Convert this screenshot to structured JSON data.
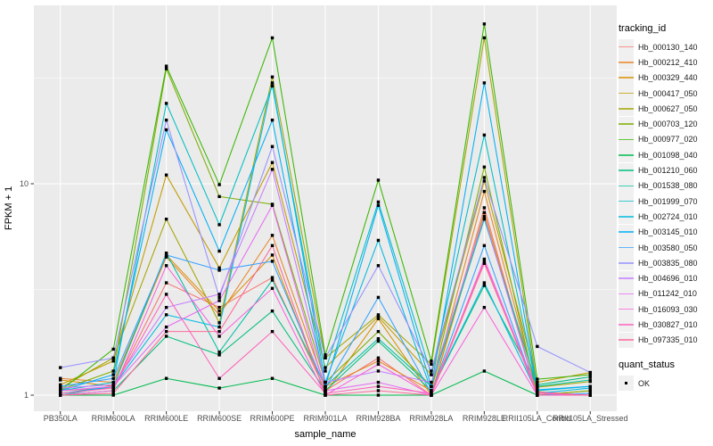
{
  "chart": {
    "ylabel": "FPKM + 1",
    "xlabel": "sample_name",
    "legend_title": "tracking_id",
    "quant_legend_title": "quant_status",
    "quant_legend_item": "OK",
    "y_ticks": [
      {
        "label": "1",
        "value": 1
      },
      {
        "label": "10",
        "value": 10
      }
    ]
  },
  "chart_data": {
    "type": "line",
    "x_type": "categorical",
    "y_scale": "log10",
    "ylim": [
      0.83,
      69
    ],
    "y_major_gridlines": [
      1,
      10
    ],
    "y_minor_gridlines": [
      3.162,
      31.623
    ],
    "grid": true,
    "panel_bg": "#EBEBEB",
    "grid_color": "#FFFFFF",
    "point_marker": "black-square",
    "point_color": "#000000",
    "legend_position": "right",
    "categories": [
      "PB350LA",
      "RRIM600LA",
      "RRIM600LE",
      "RRIM600SE",
      "RRIM600PE",
      "RRIM901LA",
      "RRIM928BA",
      "RRIM928LA",
      "RRIM928LE",
      "RRII105LA_Control",
      "RRII105LA_Stressed"
    ],
    "series": [
      {
        "name": "Hb_000130_140",
        "color": "#F8766D",
        "values": [
          1.05,
          1.08,
          3.4,
          2.6,
          3.6,
          1.05,
          1.5,
          1.0,
          7.7,
          1.0,
          1.0
        ]
      },
      {
        "name": "Hb_000212_410",
        "color": "#E88526",
        "values": [
          1.2,
          1.15,
          4.5,
          2.4,
          5.7,
          1.1,
          1.45,
          1.05,
          9.2,
          1.04,
          1.0
        ]
      },
      {
        "name": "Hb_000329_440",
        "color": "#D89000",
        "values": [
          1.18,
          1.1,
          4.6,
          2.5,
          4.6,
          1.02,
          2.3,
          1.0,
          7.3,
          1.0,
          1.05
        ]
      },
      {
        "name": "Hb_000417_050",
        "color": "#C09B00",
        "values": [
          1.12,
          1.45,
          11.0,
          4.0,
          12.6,
          1.35,
          2.35,
          1.25,
          10.3,
          1.15,
          1.28
        ]
      },
      {
        "name": "Hb_000627_050",
        "color": "#A3A500",
        "values": [
          1.08,
          1.5,
          6.8,
          2.2,
          32.0,
          1.5,
          2.4,
          1.4,
          49.0,
          1.09,
          1.16
        ]
      },
      {
        "name": "Hb_000703_120",
        "color": "#7CAE00",
        "values": [
          1.06,
          1.3,
          35.0,
          8.7,
          8.0,
          1.15,
          2.0,
          1.1,
          12.0,
          1.0,
          1.05
        ]
      },
      {
        "name": "Hb_000977_020",
        "color": "#39B600",
        "values": [
          1.05,
          1.65,
          36.0,
          9.9,
          49.0,
          1.55,
          10.4,
          1.45,
          57.0,
          1.19,
          1.25
        ]
      },
      {
        "name": "Hb_001098_040",
        "color": "#00BB4E",
        "values": [
          1.0,
          1.0,
          1.2,
          1.08,
          1.2,
          1.0,
          1.0,
          1.0,
          1.3,
          1.0,
          1.0
        ]
      },
      {
        "name": "Hb_001210_060",
        "color": "#00BF7D",
        "values": [
          1.0,
          1.05,
          1.9,
          1.55,
          2.5,
          1.05,
          1.8,
          1.05,
          3.3,
          1.12,
          1.22
        ]
      },
      {
        "name": "Hb_001538_080",
        "color": "#00C1A2",
        "values": [
          1.0,
          1.1,
          4.7,
          1.6,
          3.5,
          1.1,
          1.85,
          1.1,
          6.8,
          1.1,
          1.18
        ]
      },
      {
        "name": "Hb_001999_070",
        "color": "#00BFC4",
        "values": [
          1.05,
          1.15,
          24.0,
          6.4,
          29.0,
          1.3,
          8.2,
          1.25,
          17.0,
          1.05,
          1.1
        ]
      },
      {
        "name": "Hb_002724_010",
        "color": "#00BAE2",
        "values": [
          1.02,
          1.1,
          2.4,
          2.1,
          30.0,
          1.15,
          5.4,
          1.05,
          3.4,
          1.02,
          1.08
        ]
      },
      {
        "name": "Hb_003145_010",
        "color": "#00B0F6",
        "values": [
          1.05,
          1.25,
          18.0,
          4.8,
          20.0,
          1.1,
          7.9,
          1.1,
          30.0,
          1.06,
          1.1
        ]
      },
      {
        "name": "Hb_003580_050",
        "color": "#35A2FF",
        "values": [
          1.1,
          1.2,
          4.6,
          3.9,
          4.3,
          1.08,
          2.9,
          1.02,
          5.1,
          1.0,
          1.02
        ]
      },
      {
        "name": "Hb_003835_080",
        "color": "#9590FF",
        "values": [
          1.35,
          1.5,
          20.0,
          2.9,
          15.0,
          1.5,
          4.1,
          1.3,
          10.7,
          1.7,
          1.28
        ]
      },
      {
        "name": "Hb_004696_010",
        "color": "#C77CFF",
        "values": [
          1.08,
          1.12,
          2.6,
          3.0,
          11.7,
          1.15,
          1.3,
          1.15,
          7.0,
          1.0,
          1.0
        ]
      },
      {
        "name": "Hb_011242_010",
        "color": "#E76BF3",
        "values": [
          1.05,
          1.1,
          2.1,
          2.8,
          7.9,
          1.05,
          1.15,
          1.0,
          4.4,
          1.03,
          1.0
        ]
      },
      {
        "name": "Hb_016093_030",
        "color": "#FA62DB",
        "values": [
          1.0,
          1.05,
          4.1,
          1.9,
          3.2,
          1.0,
          1.4,
          1.0,
          2.6,
          1.0,
          1.0
        ]
      },
      {
        "name": "Hb_030827_010",
        "color": "#FF62BC",
        "values": [
          1.02,
          1.08,
          3.0,
          1.2,
          2.0,
          1.02,
          1.1,
          1.02,
          4.3,
          1.0,
          1.0
        ]
      },
      {
        "name": "Hb_097335_010",
        "color": "#FF6A98",
        "values": [
          1.0,
          1.02,
          2.0,
          2.0,
          5.1,
          1.0,
          1.05,
          1.0,
          4.2,
          1.02,
          1.0
        ]
      }
    ]
  }
}
